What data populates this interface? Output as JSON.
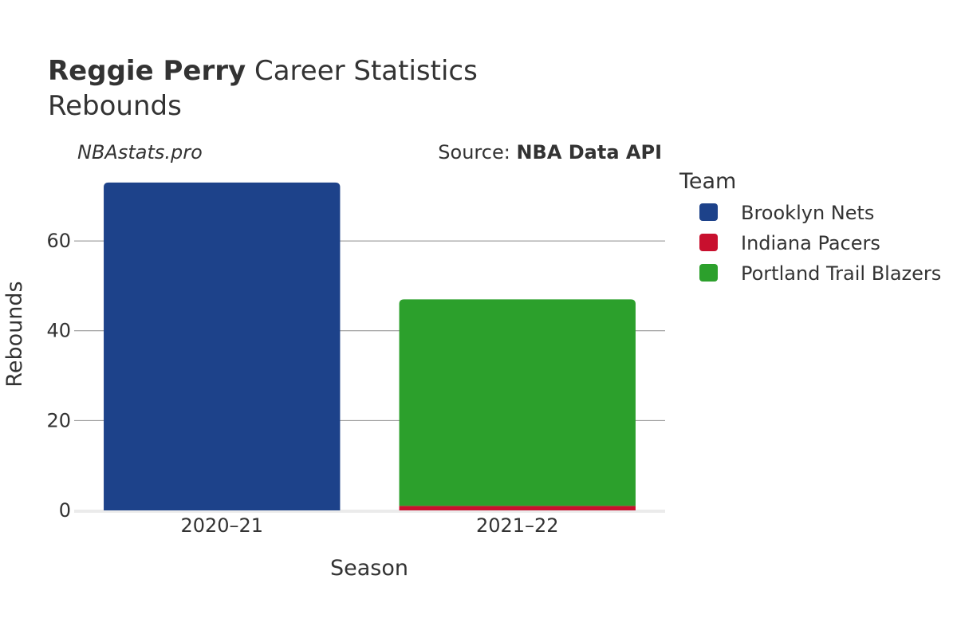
{
  "chart_data": {
    "type": "bar",
    "stacked": true,
    "title_bold": "Reggie Perry",
    "title_rest": " Career Statistics",
    "subtitle": "Rebounds",
    "watermark": "NBAstats.pro",
    "source_label": "Source: ",
    "source_name": "NBA Data API",
    "xlabel": "Season",
    "ylabel": "Rebounds",
    "categories": [
      "2020–21",
      "2021–22"
    ],
    "yticks": [
      0,
      20,
      40,
      60
    ],
    "ylim": [
      0,
      76
    ],
    "grid": true,
    "legend_title": "Team",
    "legend_position": "right",
    "series": [
      {
        "name": "Brooklyn Nets",
        "color": "#1d428a",
        "values": [
          73,
          0
        ]
      },
      {
        "name": "Indiana Pacers",
        "color": "#c8102e",
        "values": [
          0,
          1
        ]
      },
      {
        "name": "Portland Trail Blazers",
        "color": "#2ca02c",
        "values": [
          0,
          46
        ]
      }
    ]
  }
}
